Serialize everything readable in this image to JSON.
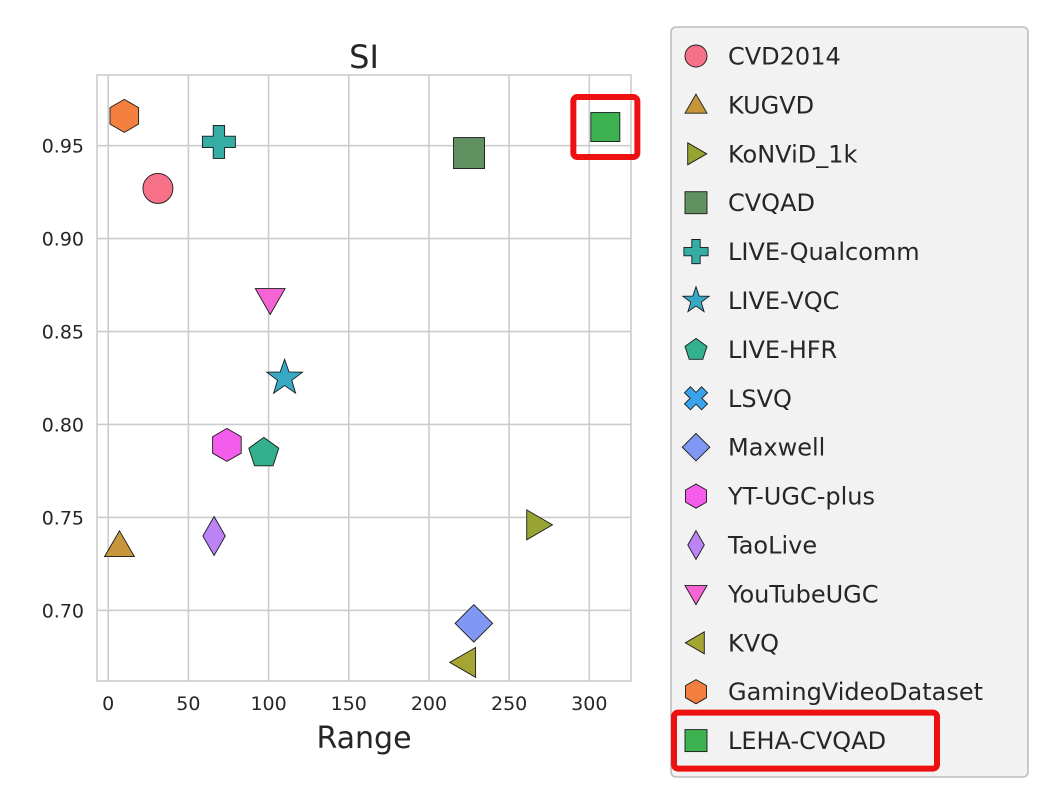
{
  "chart_data": {
    "type": "scatter",
    "title": "SI",
    "xlabel": "Range",
    "ylabel": "",
    "xlim": [
      -7,
      326
    ],
    "ylim": [
      0.662,
      0.988
    ],
    "xticks": [
      0,
      50,
      100,
      150,
      200,
      250,
      300
    ],
    "xtick_labels": [
      "0",
      "50",
      "100",
      "150",
      "200",
      "250",
      "300"
    ],
    "yticks": [
      0.7,
      0.75,
      0.8,
      0.85,
      0.9,
      0.95
    ],
    "ytick_labels": [
      "0.70",
      "0.75",
      "0.80",
      "0.85",
      "0.90",
      "0.95"
    ],
    "grid": true,
    "legend_position": "right",
    "series": [
      {
        "name": "CVD2014",
        "marker": "circle",
        "color": "#f77189",
        "x": 31,
        "y": 0.927
      },
      {
        "name": "KUGVD",
        "marker": "triangle-up",
        "color": "#c7963a",
        "x": 7,
        "y": 0.735
      },
      {
        "name": "KoNViD_1k",
        "label": "KoNViD_1k",
        "marker": "triangle-right",
        "color": "#97a432",
        "x": 268,
        "y": 0.746
      },
      {
        "name": "CVQAD",
        "marker": "square",
        "color": "#5f9161",
        "x": 225,
        "y": 0.946
      },
      {
        "name": "LIVE-Qualcomm",
        "marker": "plus",
        "color": "#36ada4",
        "x": 69,
        "y": 0.952
      },
      {
        "name": "LIVE-VQC",
        "marker": "star",
        "color": "#38a9c5",
        "x": 110,
        "y": 0.825
      },
      {
        "name": "LIVE-HFR",
        "marker": "pentagon",
        "color": "#33b08d",
        "x": 97,
        "y": 0.785
      },
      {
        "name": "LSVQ",
        "marker": "x",
        "color": "#3ba3ec",
        "x": null,
        "y": null
      },
      {
        "name": "Maxwell",
        "marker": "diamond",
        "color": "#8197f4",
        "x": 228,
        "y": 0.693
      },
      {
        "name": "YT-UGC-plus",
        "marker": "hexagon",
        "color": "#f45deb",
        "x": 74,
        "y": 0.789
      },
      {
        "name": "TaoLive",
        "marker": "thin-diamond",
        "color": "#bb83f4",
        "x": 66,
        "y": 0.74
      },
      {
        "name": "YouTubeUGC",
        "marker": "triangle-down",
        "color": "#f564d4",
        "x": 101,
        "y": 0.867
      },
      {
        "name": "KVQ",
        "marker": "triangle-left",
        "color": "#a5a534",
        "x": 222,
        "y": 0.672
      },
      {
        "name": "GamingVideoDataset",
        "marker": "hexagon",
        "color": "#f3803e",
        "x": 10,
        "y": 0.966
      },
      {
        "name": "LEHA-CVQAD",
        "marker": "square",
        "color": "#3cb350",
        "x": 310,
        "y": 0.96,
        "highlighted": true
      }
    ]
  }
}
